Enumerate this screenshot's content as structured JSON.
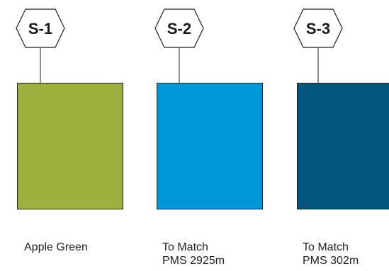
{
  "swatches": [
    {
      "tag": "S-1",
      "color": "#9bb03f",
      "caption_lines": [
        "Apple Green"
      ]
    },
    {
      "tag": "S-2",
      "color": "#0097d9",
      "caption_lines": [
        "To Match",
        "PMS 2925m"
      ]
    },
    {
      "tag": "S-3",
      "color": "#02557f",
      "caption_lines": [
        "To Match",
        "PMS 302m"
      ]
    }
  ]
}
